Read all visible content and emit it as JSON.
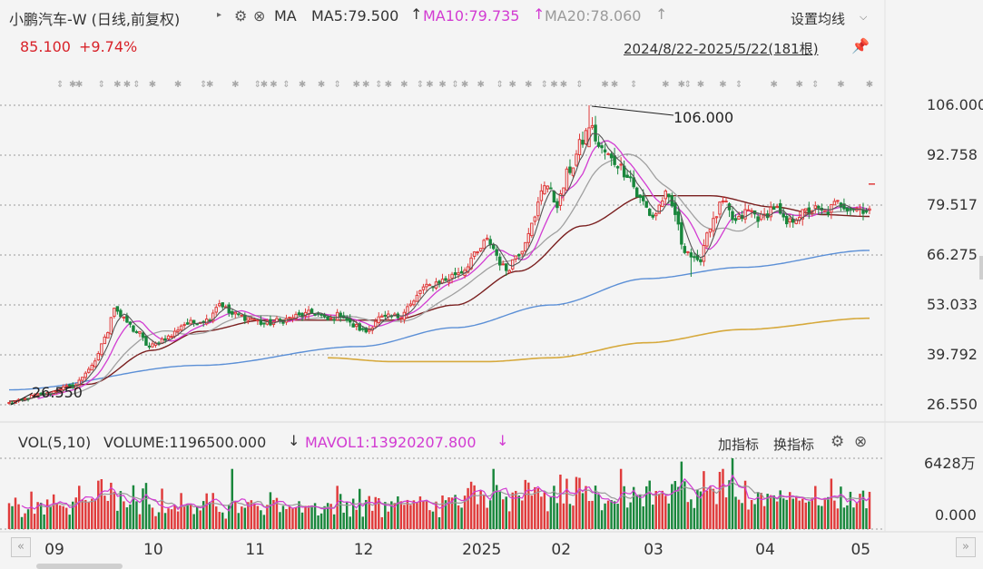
{
  "header": {
    "title": "小鹏汽车-W (日线,前复权)",
    "ma_label": "MA",
    "ma5": "MA5:79.500",
    "ma10": "MA10:79.735",
    "ma20": "MA20:78.060",
    "settings_label": "设置均线",
    "price": "85.100",
    "change": "+9.74%",
    "range": "2024/8/22-2025/5/22(181根)"
  },
  "volume_header": {
    "label": "VOL(5,10)",
    "volume": "VOLUME:1196500.000",
    "mavol": "MAVOL1:13920207.800",
    "add_indicator": "加指标",
    "switch_indicator": "换指标"
  },
  "colors": {
    "up": "#e03b3b",
    "down": "#19873c",
    "ma5": "#555555",
    "ma10": "#d23bd2",
    "ma20": "#a0a0a0",
    "ma60": "#7a1f1f",
    "ma120": "#5b8fd6",
    "ma250": "#d6a93c"
  },
  "chart_data": {
    "type": "candlestick",
    "title": "小鹏汽车-W (日线,前复权)",
    "y_ticks": [
      "106.000",
      "92.758",
      "79.517",
      "66.275",
      "53.033",
      "39.792",
      "26.550"
    ],
    "ylim": [
      26.55,
      106.0
    ],
    "x_labels": [
      "09",
      "10",
      "11",
      "12",
      "2025",
      "02",
      "03",
      "04",
      "05"
    ],
    "annotations": {
      "high": "106.000",
      "low": "26.550"
    },
    "price_keypoints": [
      [
        0,
        27.0
      ],
      [
        10,
        29.2
      ],
      [
        20,
        31.5
      ],
      [
        26,
        36.5
      ],
      [
        30,
        44.0
      ],
      [
        33,
        52.5
      ],
      [
        36,
        49.0
      ],
      [
        40,
        46.0
      ],
      [
        44,
        42.0
      ],
      [
        50,
        44.5
      ],
      [
        55,
        48.0
      ],
      [
        62,
        49.0
      ],
      [
        66,
        53.5
      ],
      [
        70,
        50.5
      ],
      [
        76,
        49.5
      ],
      [
        80,
        48.0
      ],
      [
        86,
        49.0
      ],
      [
        90,
        50.0
      ],
      [
        96,
        51.0
      ],
      [
        100,
        49.0
      ],
      [
        104,
        50.5
      ],
      [
        108,
        47.5
      ],
      [
        112,
        46.0
      ],
      [
        116,
        49.5
      ],
      [
        122,
        50.0
      ],
      [
        126,
        53.0
      ],
      [
        130,
        57.5
      ],
      [
        136,
        59.5
      ],
      [
        142,
        62.0
      ],
      [
        146,
        66.0
      ],
      [
        150,
        70.0
      ],
      [
        156,
        62.5
      ],
      [
        160,
        67.0
      ],
      [
        164,
        74.0
      ],
      [
        168,
        85.5
      ],
      [
        172,
        80.0
      ],
      [
        176,
        89.0
      ],
      [
        180,
        96.5
      ],
      [
        182,
        100.5
      ],
      [
        186,
        94.0
      ],
      [
        190,
        91.0
      ],
      [
        194,
        88.0
      ],
      [
        198,
        81.0
      ],
      [
        202,
        76.5
      ],
      [
        206,
        82.0
      ],
      [
        208,
        79.0
      ],
      [
        212,
        68.0
      ],
      [
        216,
        64.0
      ],
      [
        220,
        74.0
      ],
      [
        224,
        80.0
      ],
      [
        228,
        75.0
      ],
      [
        232,
        78.0
      ],
      [
        236,
        76.0
      ],
      [
        240,
        79.0
      ],
      [
        244,
        74.5
      ],
      [
        248,
        77.0
      ],
      [
        252,
        78.5
      ],
      [
        256,
        77.5
      ],
      [
        260,
        80.0
      ],
      [
        264,
        79.0
      ],
      [
        268,
        78.5
      ],
      [
        270,
        78.0
      ]
    ],
    "ma60_keypoints": [
      [
        0,
        27.5
      ],
      [
        25,
        32
      ],
      [
        45,
        41
      ],
      [
        60,
        46
      ],
      [
        80,
        49
      ],
      [
        100,
        49
      ],
      [
        120,
        49
      ],
      [
        140,
        53
      ],
      [
        160,
        62
      ],
      [
        180,
        74
      ],
      [
        200,
        82
      ],
      [
        220,
        82
      ],
      [
        240,
        79
      ],
      [
        255,
        77
      ],
      [
        270,
        76.5
      ]
    ],
    "ma120_keypoints": [
      [
        0,
        30.5
      ],
      [
        60,
        37
      ],
      [
        110,
        42
      ],
      [
        140,
        47
      ],
      [
        170,
        53
      ],
      [
        200,
        60
      ],
      [
        230,
        63
      ],
      [
        270,
        67.5
      ]
    ],
    "ma250_keypoints": [
      [
        100,
        39
      ],
      [
        120,
        38
      ],
      [
        150,
        38
      ],
      [
        170,
        39
      ],
      [
        200,
        43
      ],
      [
        230,
        46.5
      ],
      [
        270,
        49.5
      ]
    ],
    "volume_unit_label": "6428万",
    "volume_zero_label": "0.000"
  }
}
